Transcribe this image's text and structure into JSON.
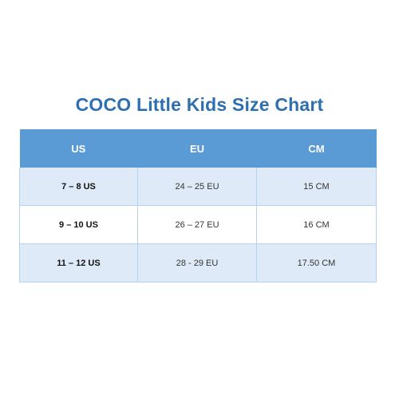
{
  "title": "COCO Little Kids Size Chart",
  "table": {
    "headers": [
      "US",
      "EU",
      "CM"
    ],
    "rows": [
      [
        "7 – 8 US",
        "24 – 25 EU",
        "15 CM"
      ],
      [
        "9 – 10 US",
        "26 – 27 EU",
        "16 CM"
      ],
      [
        "11 – 12 US",
        "28 - 29  EU",
        "17.50 CM"
      ]
    ]
  },
  "colors": {
    "title": "#2e6fb0",
    "header_bg": "#5b9bd5",
    "header_text": "#ffffff",
    "row_shade": "#deeaf7",
    "row_plain": "#ffffff",
    "border": "#b8d0ea"
  }
}
